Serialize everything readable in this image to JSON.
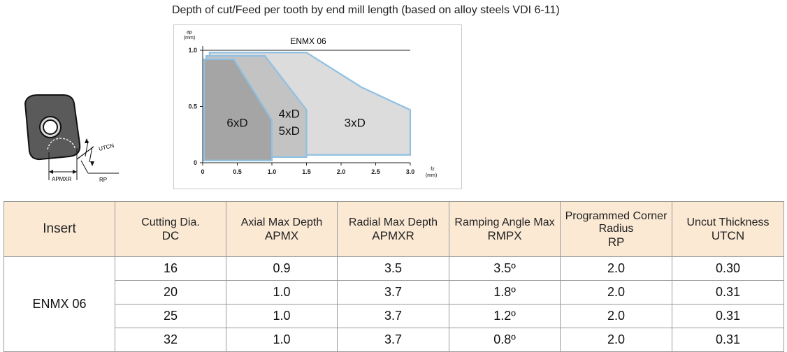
{
  "heading": "Depth of cut/Feed per tooth by end mill length (based on alloy steels VDI 6-11)",
  "diagram": {
    "labels": {
      "utcn": "UTCN",
      "apmxr": "APMXR",
      "rp": "RP"
    }
  },
  "chart_data": {
    "type": "area",
    "title": "ENMX 06",
    "ylabel_top": "ap",
    "ylabel_unit": "(mm)",
    "xlabel_top": "fz",
    "xlabel_unit": "(mm)",
    "xlim": [
      0,
      3.0
    ],
    "ylim": [
      0,
      1.0
    ],
    "x_ticks": [
      "0",
      "0.5",
      "1.0",
      "1.5",
      "2.0",
      "2.5",
      "3.0"
    ],
    "y_ticks": [
      "0",
      "0.5",
      "1.0"
    ],
    "regions": [
      {
        "label": "3xD",
        "polygon": [
          [
            0.1,
            0.07
          ],
          [
            0.1,
            0.98
          ],
          [
            1.5,
            0.98
          ],
          [
            2.3,
            0.67
          ],
          [
            3.0,
            0.47
          ],
          [
            3.0,
            0.07
          ]
        ]
      },
      {
        "label": "4xD",
        "label2": "5xD",
        "polygon": [
          [
            0.05,
            0.05
          ],
          [
            0.05,
            0.95
          ],
          [
            0.9,
            0.95
          ],
          [
            1.5,
            0.47
          ],
          [
            1.5,
            0.05
          ]
        ]
      },
      {
        "label": "6xD",
        "polygon": [
          [
            0.02,
            0.02
          ],
          [
            0.02,
            0.92
          ],
          [
            0.45,
            0.92
          ],
          [
            1.0,
            0.38
          ],
          [
            1.0,
            0.02
          ]
        ]
      }
    ]
  },
  "table": {
    "headers": [
      {
        "text": "Insert",
        "code": ""
      },
      {
        "text": "Cutting Dia.",
        "code": "DC"
      },
      {
        "text": "Axial Max Depth",
        "code": "APMX"
      },
      {
        "text": "Radial Max Depth",
        "code": "APMXR"
      },
      {
        "text": "Ramping Angle Max",
        "code": "RMPX"
      },
      {
        "text": "Programmed Corner Radius",
        "code": "RP"
      },
      {
        "text": "Uncut Thickness",
        "code": "UTCN"
      }
    ],
    "insert": "ENMX 06",
    "rows": [
      [
        "16",
        "0.9",
        "3.5",
        "3.5º",
        "2.0",
        "0.30"
      ],
      [
        "20",
        "1.0",
        "3.7",
        "1.8º",
        "2.0",
        "0.31"
      ],
      [
        "25",
        "1.0",
        "3.7",
        "1.2º",
        "2.0",
        "0.31"
      ],
      [
        "32",
        "1.0",
        "3.7",
        "0.8º",
        "2.0",
        "0.31"
      ]
    ]
  }
}
